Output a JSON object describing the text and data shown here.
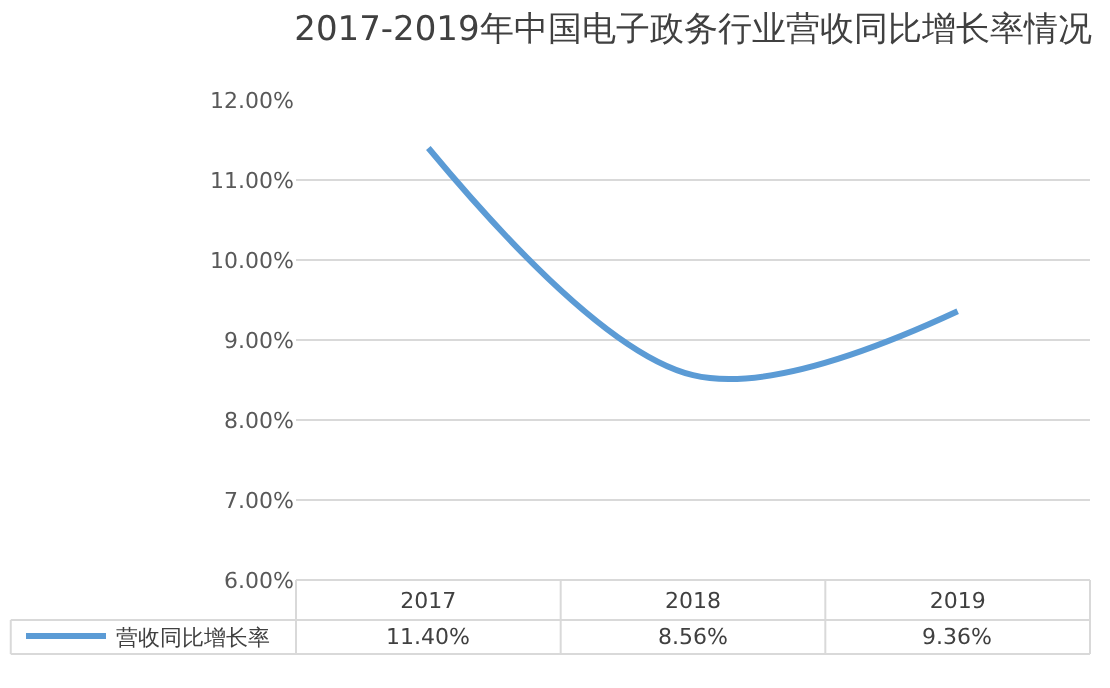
{
  "chart_data": {
    "type": "line",
    "title": "2017-2019年中国电子政务行业营收同比增长率情况",
    "categories": [
      "2017",
      "2018",
      "2019"
    ],
    "series": [
      {
        "name": "营收同比增长率",
        "color": "#5b9bd5",
        "values": [
          11.4,
          8.56,
          9.36
        ],
        "value_labels": [
          "11.40%",
          "8.56%",
          "9.36%"
        ]
      }
    ],
    "ylim": [
      6,
      12
    ],
    "yticks": [
      {
        "value": 6,
        "label": "6.00%"
      },
      {
        "value": 7,
        "label": "7.00%"
      },
      {
        "value": 8,
        "label": "8.00%"
      },
      {
        "value": 9,
        "label": "9.00%"
      },
      {
        "value": 10,
        "label": "10.00%"
      },
      {
        "value": 11,
        "label": "11.00%"
      },
      {
        "value": 12,
        "label": "12.00%"
      }
    ],
    "grid": "y",
    "legend": "bottom left",
    "marker": "none",
    "line_style": "solid"
  }
}
